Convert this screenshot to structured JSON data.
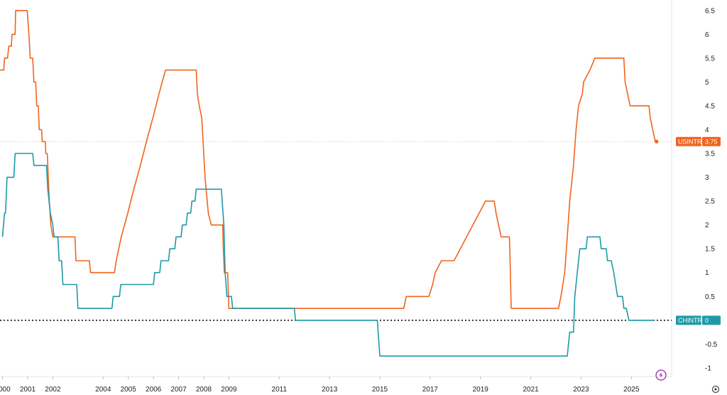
{
  "chart_data": {
    "type": "line",
    "xlim": [
      1999.9,
      2026.6
    ],
    "ylim": [
      -1.18,
      6.72
    ],
    "y_ticks": [
      "6.5",
      "6",
      "5.5",
      "5",
      "4.5",
      "4",
      "3.5",
      "3",
      "2.5",
      "2",
      "1.5",
      "1",
      "0.5",
      "0",
      "-0.5",
      "-1"
    ],
    "x_ticks": [
      "2000",
      "2001",
      "2002",
      "2004",
      "2005",
      "2006",
      "2007",
      "2008",
      "2009",
      "2011",
      "2013",
      "2015",
      "2017",
      "2019",
      "2021",
      "2023",
      "2025"
    ],
    "series": [
      {
        "name": "USINTR",
        "color": "#f0641e",
        "last_value": "3.75",
        "points": [
          [
            1999.9,
            5.25
          ],
          [
            2000.05,
            5.25
          ],
          [
            2000.08,
            5.5
          ],
          [
            2000.2,
            5.5
          ],
          [
            2000.25,
            5.75
          ],
          [
            2000.35,
            5.75
          ],
          [
            2000.38,
            6.0
          ],
          [
            2000.5,
            6.0
          ],
          [
            2000.52,
            6.5
          ],
          [
            2000.98,
            6.5
          ],
          [
            2001.05,
            6.0
          ],
          [
            2001.1,
            5.5
          ],
          [
            2001.2,
            5.5
          ],
          [
            2001.25,
            5.0
          ],
          [
            2001.32,
            5.0
          ],
          [
            2001.36,
            4.5
          ],
          [
            2001.42,
            4.5
          ],
          [
            2001.46,
            4.0
          ],
          [
            2001.55,
            4.0
          ],
          [
            2001.58,
            3.75
          ],
          [
            2001.7,
            3.75
          ],
          [
            2001.72,
            3.5
          ],
          [
            2001.78,
            3.5
          ],
          [
            2001.82,
            3.0
          ],
          [
            2001.86,
            2.5
          ],
          [
            2001.92,
            2.0
          ],
          [
            2002.0,
            1.75
          ],
          [
            2002.88,
            1.75
          ],
          [
            2002.92,
            1.25
          ],
          [
            2003.45,
            1.25
          ],
          [
            2003.5,
            1.0
          ],
          [
            2004.45,
            1.0
          ],
          [
            2004.52,
            1.25
          ],
          [
            2004.62,
            1.5
          ],
          [
            2004.72,
            1.75
          ],
          [
            2004.85,
            2.0
          ],
          [
            2004.98,
            2.25
          ],
          [
            2005.1,
            2.5
          ],
          [
            2005.22,
            2.75
          ],
          [
            2005.35,
            3.0
          ],
          [
            2005.48,
            3.25
          ],
          [
            2005.6,
            3.5
          ],
          [
            2005.72,
            3.75
          ],
          [
            2005.85,
            4.0
          ],
          [
            2005.98,
            4.25
          ],
          [
            2006.1,
            4.5
          ],
          [
            2006.22,
            4.75
          ],
          [
            2006.35,
            5.0
          ],
          [
            2006.48,
            5.25
          ],
          [
            2007.7,
            5.25
          ],
          [
            2007.75,
            4.75
          ],
          [
            2007.82,
            4.5
          ],
          [
            2007.92,
            4.25
          ],
          [
            2008.05,
            3.0
          ],
          [
            2008.18,
            2.25
          ],
          [
            2008.3,
            2.0
          ],
          [
            2008.75,
            2.0
          ],
          [
            2008.78,
            1.5
          ],
          [
            2008.82,
            1.0
          ],
          [
            2008.95,
            1.0
          ],
          [
            2009.0,
            0.25
          ],
          [
            2015.95,
            0.25
          ],
          [
            2016.05,
            0.5
          ],
          [
            2016.95,
            0.5
          ],
          [
            2017.1,
            0.75
          ],
          [
            2017.2,
            1.0
          ],
          [
            2017.45,
            1.25
          ],
          [
            2017.95,
            1.25
          ],
          [
            2018.2,
            1.5
          ],
          [
            2018.45,
            1.75
          ],
          [
            2018.7,
            2.0
          ],
          [
            2018.95,
            2.25
          ],
          [
            2019.2,
            2.5
          ],
          [
            2019.55,
            2.5
          ],
          [
            2019.62,
            2.25
          ],
          [
            2019.72,
            2.0
          ],
          [
            2019.82,
            1.75
          ],
          [
            2020.15,
            1.75
          ],
          [
            2020.18,
            1.25
          ],
          [
            2020.22,
            0.25
          ],
          [
            2022.1,
            0.25
          ],
          [
            2022.2,
            0.5
          ],
          [
            2022.35,
            1.0
          ],
          [
            2022.45,
            1.75
          ],
          [
            2022.55,
            2.5
          ],
          [
            2022.7,
            3.25
          ],
          [
            2022.8,
            4.0
          ],
          [
            2022.9,
            4.5
          ],
          [
            2023.05,
            4.75
          ],
          [
            2023.1,
            5.0
          ],
          [
            2023.35,
            5.25
          ],
          [
            2023.55,
            5.5
          ],
          [
            2024.7,
            5.5
          ],
          [
            2024.75,
            5.0
          ],
          [
            2024.85,
            4.75
          ],
          [
            2024.95,
            4.5
          ],
          [
            2025.7,
            4.5
          ],
          [
            2025.75,
            4.25
          ],
          [
            2025.85,
            4.0
          ],
          [
            2025.95,
            3.75
          ],
          [
            2026.0,
            3.75
          ]
        ]
      },
      {
        "name": "CHINTR",
        "color": "#1e9aa6",
        "last_value": "0",
        "points": [
          [
            2000.0,
            1.75
          ],
          [
            2000.08,
            2.25
          ],
          [
            2000.12,
            2.25
          ],
          [
            2000.18,
            3.0
          ],
          [
            2000.45,
            3.0
          ],
          [
            2000.5,
            3.5
          ],
          [
            2001.2,
            3.5
          ],
          [
            2001.25,
            3.25
          ],
          [
            2001.75,
            3.25
          ],
          [
            2001.8,
            2.75
          ],
          [
            2001.9,
            2.25
          ],
          [
            2002.0,
            2.0
          ],
          [
            2002.05,
            1.75
          ],
          [
            2002.2,
            1.75
          ],
          [
            2002.25,
            1.25
          ],
          [
            2002.35,
            1.25
          ],
          [
            2002.4,
            0.75
          ],
          [
            2002.95,
            0.75
          ],
          [
            2003.0,
            0.25
          ],
          [
            2004.35,
            0.25
          ],
          [
            2004.4,
            0.5
          ],
          [
            2004.65,
            0.5
          ],
          [
            2004.7,
            0.75
          ],
          [
            2006.0,
            0.75
          ],
          [
            2006.05,
            1.0
          ],
          [
            2006.25,
            1.0
          ],
          [
            2006.3,
            1.25
          ],
          [
            2006.6,
            1.25
          ],
          [
            2006.65,
            1.5
          ],
          [
            2006.85,
            1.5
          ],
          [
            2006.9,
            1.75
          ],
          [
            2007.1,
            1.75
          ],
          [
            2007.15,
            2.0
          ],
          [
            2007.3,
            2.0
          ],
          [
            2007.35,
            2.25
          ],
          [
            2007.48,
            2.25
          ],
          [
            2007.53,
            2.5
          ],
          [
            2007.65,
            2.5
          ],
          [
            2007.7,
            2.75
          ],
          [
            2008.7,
            2.75
          ],
          [
            2008.8,
            2.0
          ],
          [
            2008.85,
            1.0
          ],
          [
            2008.92,
            0.5
          ],
          [
            2009.1,
            0.5
          ],
          [
            2009.15,
            0.25
          ],
          [
            2011.6,
            0.25
          ],
          [
            2011.65,
            0.0
          ],
          [
            2014.9,
            0.0
          ],
          [
            2015.0,
            -0.75
          ],
          [
            2022.45,
            -0.75
          ],
          [
            2022.55,
            -0.25
          ],
          [
            2022.7,
            -0.25
          ],
          [
            2022.75,
            0.5
          ],
          [
            2022.85,
            1.0
          ],
          [
            2022.95,
            1.5
          ],
          [
            2023.2,
            1.5
          ],
          [
            2023.25,
            1.75
          ],
          [
            2023.75,
            1.75
          ],
          [
            2023.8,
            1.5
          ],
          [
            2024.0,
            1.5
          ],
          [
            2024.05,
            1.25
          ],
          [
            2024.2,
            1.25
          ],
          [
            2024.3,
            1.0
          ],
          [
            2024.45,
            0.5
          ],
          [
            2024.65,
            0.5
          ],
          [
            2024.7,
            0.25
          ],
          [
            2024.8,
            0.25
          ],
          [
            2024.9,
            0.0
          ],
          [
            2025.9,
            0.0
          ]
        ]
      }
    ]
  },
  "icons": {
    "flash": "lightning-icon",
    "settings": "gear-icon"
  }
}
